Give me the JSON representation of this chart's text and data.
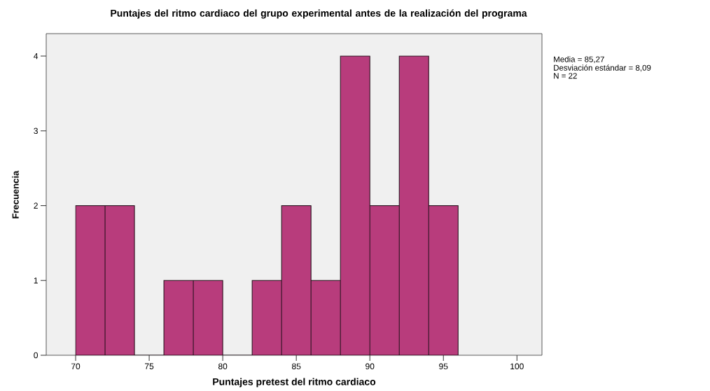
{
  "chart_data": {
    "type": "histogram",
    "title": "Puntajes del ritmo cardiaco del grupo experimental antes de la realización del programa",
    "xlabel": "Puntajes pretest del ritmo cardiaco",
    "ylabel": "Frecuencia",
    "bins": [
      70,
      72,
      74,
      76,
      78,
      80,
      82,
      84,
      86,
      88,
      90,
      92,
      94,
      96
    ],
    "values": [
      2,
      2,
      0,
      1,
      1,
      0,
      1,
      2,
      1,
      4,
      2,
      4,
      2
    ],
    "color": "#b83c7c",
    "xlim": [
      68,
      101.7
    ],
    "ylim": [
      0,
      4.3
    ],
    "xticks": [
      70,
      75,
      80,
      85,
      90,
      95,
      100
    ],
    "yticks": [
      0,
      1,
      2,
      3,
      4
    ],
    "grid": false,
    "annotations": [
      "Media = 85,27",
      "Desviación estándar = 8,09",
      "N = 22"
    ]
  }
}
